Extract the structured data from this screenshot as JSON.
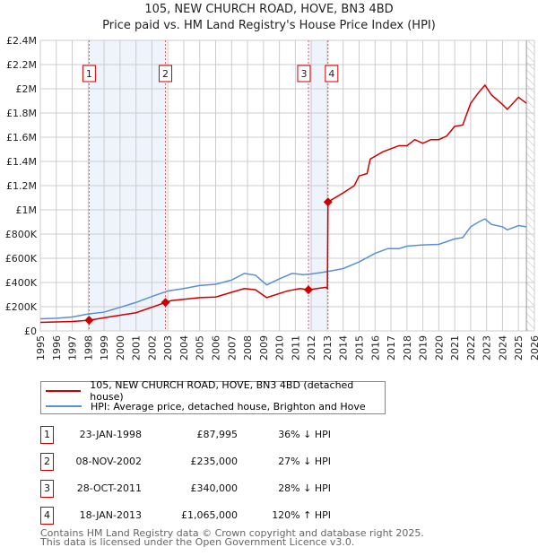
{
  "chart_data": {
    "type": "line",
    "title": "105, NEW CHURCH ROAD, HOVE, BN3 4BD",
    "subtitle": "Price paid vs. HM Land Registry's House Price Index (HPI)",
    "xlim": [
      1995,
      2026
    ],
    "ylim": [
      0,
      2400000
    ],
    "x_ticks": [
      "1995",
      "1996",
      "1997",
      "1998",
      "1999",
      "2000",
      "2001",
      "2002",
      "2003",
      "2004",
      "2005",
      "2006",
      "2007",
      "2008",
      "2009",
      "2010",
      "2011",
      "2012",
      "2013",
      "2014",
      "2015",
      "2016",
      "2017",
      "2018",
      "2019",
      "2020",
      "2021",
      "2022",
      "2023",
      "2024",
      "2025",
      "2026"
    ],
    "y_ticks": [
      {
        "value": 0,
        "label": "£0"
      },
      {
        "value": 200000,
        "label": "£200K"
      },
      {
        "value": 400000,
        "label": "£400K"
      },
      {
        "value": 600000,
        "label": "£600K"
      },
      {
        "value": 800000,
        "label": "£800K"
      },
      {
        "value": 1000000,
        "label": "£1M"
      },
      {
        "value": 1200000,
        "label": "£1.2M"
      },
      {
        "value": 1400000,
        "label": "£1.4M"
      },
      {
        "value": 1600000,
        "label": "£1.6M"
      },
      {
        "value": 1800000,
        "label": "£1.8M"
      },
      {
        "value": 2000000,
        "label": "£2M"
      },
      {
        "value": 2200000,
        "label": "£2.2M"
      },
      {
        "value": 2400000,
        "label": "£2.4M"
      }
    ],
    "grid": true,
    "series": [
      {
        "name": "105, NEW CHURCH ROAD, HOVE, BN3 4BD (detached house)",
        "color": "#cc0000",
        "x": [
          1995,
          1997,
          1998.06,
          2000,
          2001,
          2002.85,
          2003.2,
          2005,
          2006,
          2007.8,
          2008.5,
          2009.2,
          2010.5,
          2011.3,
          2011.82,
          2012.9,
          2013.01,
          2013.05,
          2014,
          2014.7,
          2015,
          2015.5,
          2015.7,
          2016.5,
          2017.5,
          2018,
          2018.5,
          2019,
          2019.5,
          2020,
          2020.5,
          2021,
          2021.5,
          2022,
          2022.5,
          2022.9,
          2023.3,
          2024,
          2024.3,
          2025,
          2025.5
        ],
        "y": [
          70000,
          78000,
          87995,
          130000,
          150000,
          235000,
          250000,
          275000,
          280000,
          350000,
          340000,
          275000,
          330000,
          350000,
          340000,
          360000,
          350000,
          1065000,
          1140000,
          1200000,
          1280000,
          1300000,
          1420000,
          1480000,
          1530000,
          1530000,
          1580000,
          1550000,
          1580000,
          1580000,
          1610000,
          1690000,
          1700000,
          1880000,
          1970000,
          2030000,
          1950000,
          1870000,
          1830000,
          1930000,
          1880000
        ]
      },
      {
        "name": "HPI: Average price, detached house, Brighton and Hove",
        "color": "#5b8fd4",
        "x": [
          1995,
          1996,
          1997,
          1998,
          1999,
          2000,
          2001,
          2002,
          2003,
          2004,
          2005,
          2006,
          2007,
          2007.8,
          2008.5,
          2009.2,
          2010,
          2010.8,
          2011.5,
          2012,
          2013,
          2014,
          2015,
          2016,
          2016.8,
          2017.5,
          2018,
          2019,
          2020,
          2021,
          2021.5,
          2022,
          2022.5,
          2022.9,
          2023.3,
          2024,
          2024.3,
          2025,
          2025.5
        ],
        "y": [
          100000,
          105000,
          115000,
          140000,
          155000,
          195000,
          235000,
          285000,
          330000,
          350000,
          375000,
          385000,
          420000,
          475000,
          460000,
          380000,
          430000,
          475000,
          465000,
          470000,
          490000,
          515000,
          570000,
          640000,
          680000,
          680000,
          700000,
          710000,
          715000,
          760000,
          770000,
          860000,
          900000,
          925000,
          880000,
          860000,
          835000,
          870000,
          860000
        ]
      }
    ],
    "sales": [
      {
        "id": "1",
        "x": 1998.06,
        "price": 87995,
        "date": "23-JAN-1998",
        "price_label": "£87,995",
        "hpi": "36% ↓ HPI"
      },
      {
        "id": "2",
        "x": 2002.85,
        "price": 235000,
        "date": "08-NOV-2002",
        "price_label": "£235,000",
        "hpi": "27% ↓ HPI"
      },
      {
        "id": "3",
        "x": 2011.82,
        "price": 340000,
        "date": "28-OCT-2011",
        "price_label": "£340,000",
        "hpi": "28% ↓ HPI"
      },
      {
        "id": "4",
        "x": 2013.05,
        "price": 1065000,
        "date": "18-JAN-2013",
        "price_label": "£1,065,000",
        "hpi": "120% ↑ HPI"
      }
    ],
    "shaded_periods": [
      [
        1998.06,
        2002.85
      ],
      [
        2011.82,
        2013.05
      ]
    ],
    "forecast_start": 2025.5,
    "legend_position": "below"
  },
  "footer": {
    "line1": "Contains HM Land Registry data © Crown copyright and database right 2025.",
    "line2": "This data is licensed under the Open Government Licence v3.0."
  }
}
